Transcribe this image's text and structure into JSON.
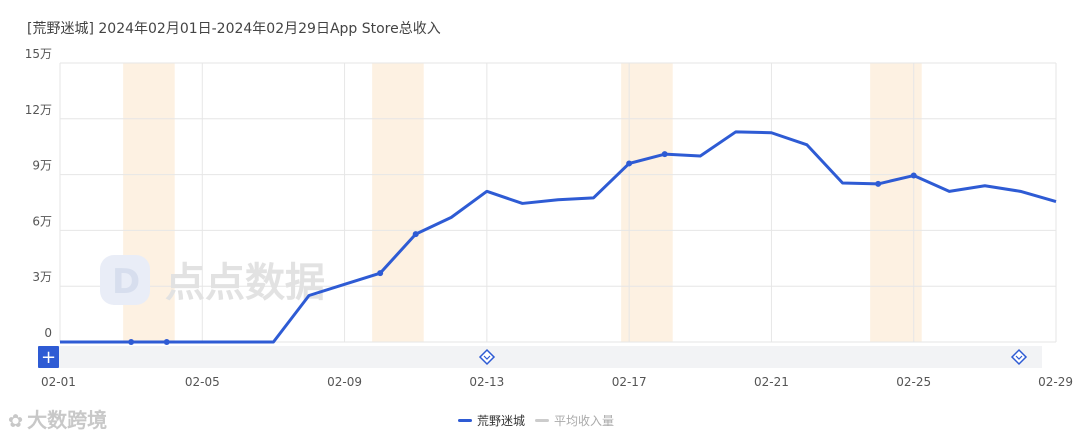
{
  "header": {
    "title": "[荒野迷城]  2024年02月01日-2024年02月29日App Store总收入"
  },
  "watermark": {
    "center": "点点数据",
    "bottom": "大数跨境"
  },
  "colors": {
    "line": "#2e5bd4",
    "band": "#fdf1e2",
    "grid": "#e6e6e6",
    "slider": "#f2f3f5",
    "legend_off": "#cccccc"
  },
  "legend": [
    {
      "name": "荒野迷城",
      "active": true
    },
    {
      "name": "平均收入量",
      "active": false
    }
  ],
  "chart_data": {
    "type": "line",
    "title": "[荒野迷城]  2024年02月01日-2024年02月29日App Store总收入",
    "x_labels": [
      "02-01",
      "02-05",
      "02-09",
      "02-13",
      "02-17",
      "02-21",
      "02-25",
      "02-29"
    ],
    "y_ticks": [
      {
        "value": 0,
        "label": "0"
      },
      {
        "value": 30000,
        "label": "3万"
      },
      {
        "value": 60000,
        "label": "6万"
      },
      {
        "value": 90000,
        "label": "9万"
      },
      {
        "value": 120000,
        "label": "12万"
      },
      {
        "value": 150000,
        "label": "15万"
      }
    ],
    "ylim": [
      0,
      150000
    ],
    "weekend_bands": [
      [
        "02-03",
        "02-04"
      ],
      [
        "02-10",
        "02-11"
      ],
      [
        "02-17",
        "02-18"
      ],
      [
        "02-24",
        "02-25"
      ]
    ],
    "series": [
      {
        "name": "荒野迷城",
        "x": [
          "02-01",
          "02-02",
          "02-03",
          "02-04",
          "02-05",
          "02-06",
          "02-07",
          "02-08",
          "02-09",
          "02-10",
          "02-11",
          "02-12",
          "02-13",
          "02-14",
          "02-15",
          "02-16",
          "02-17",
          "02-18",
          "02-19",
          "02-20",
          "02-21",
          "02-22",
          "02-23",
          "02-24",
          "02-25",
          "02-26",
          "02-27",
          "02-28",
          "02-29"
        ],
        "values": [
          0,
          0,
          0,
          0,
          0,
          0,
          0,
          25000,
          31000,
          37000,
          58000,
          67000,
          81000,
          74500,
          76500,
          77500,
          96000,
          101000,
          100000,
          113000,
          112500,
          106000,
          85500,
          85000,
          89500,
          81000,
          84000,
          81000,
          75500
        ],
        "markers": [
          "02-03",
          "02-04",
          "02-10",
          "02-11",
          "02-17",
          "02-18",
          "02-24",
          "02-25"
        ]
      }
    ],
    "grid": true,
    "legend_position": "bottom-center"
  }
}
